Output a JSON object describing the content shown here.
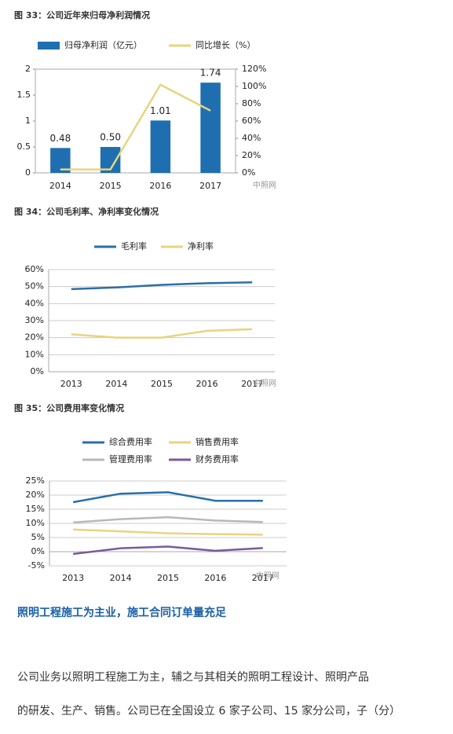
{
  "chart_data": [
    {
      "type": "bar",
      "title": "图 33：公司近年来归母净利润情况",
      "categories": [
        "2014",
        "2015",
        "2016",
        "2017"
      ],
      "series": [
        {
          "name": "归母净利润（亿元）",
          "type": "bar",
          "color": "#1f6fb0",
          "values": [
            0.48,
            0.5,
            1.01,
            1.74
          ],
          "value_labels": [
            "0.48",
            "0.50",
            "1.01",
            "1.74"
          ]
        },
        {
          "name": "同比增长（%）",
          "type": "line",
          "axis": "y2",
          "color": "#e8d47e",
          "values": [
            4,
            4,
            102,
            72
          ]
        }
      ],
      "ylim": [
        0,
        2
      ],
      "yticks": [
        0,
        0.5,
        1,
        1.5,
        2
      ],
      "y2lim": [
        0,
        120
      ],
      "y2ticks": [
        {
          "value": 0,
          "label": "0%"
        },
        {
          "value": 20,
          "label": "20%"
        },
        {
          "value": 40,
          "label": "40%"
        },
        {
          "value": 60,
          "label": "60%"
        },
        {
          "value": 80,
          "label": "80%"
        },
        {
          "value": 100,
          "label": "100%"
        },
        {
          "value": 120,
          "label": "120%"
        }
      ],
      "grid": false,
      "watermark": "中照网"
    },
    {
      "type": "line",
      "title": "图 34：公司毛利率、净利率变化情况",
      "categories": [
        "2013",
        "2014",
        "2015",
        "2016",
        "2017"
      ],
      "series": [
        {
          "name": "毛利率",
          "color": "#2a6fa8",
          "values": [
            48.5,
            49.5,
            51,
            52,
            52.5
          ]
        },
        {
          "name": "净利率",
          "color": "#e8d47e",
          "values": [
            22,
            20,
            20,
            24,
            25
          ]
        }
      ],
      "ylim": [
        0,
        60
      ],
      "yticks": [
        {
          "value": 0,
          "label": "0%"
        },
        {
          "value": 10,
          "label": "10%"
        },
        {
          "value": 20,
          "label": "20%"
        },
        {
          "value": 30,
          "label": "30%"
        },
        {
          "value": 40,
          "label": "40%"
        },
        {
          "value": 50,
          "label": "50%"
        },
        {
          "value": 60,
          "label": "60%"
        }
      ],
      "grid": true,
      "watermark": "中照网"
    },
    {
      "type": "line",
      "title": "图 35：公司费用率变化情况",
      "categories": [
        "2013",
        "2014",
        "2015",
        "2016",
        "2017"
      ],
      "series": [
        {
          "name": "综合费用率",
          "color": "#2a6fa8",
          "values": [
            17.5,
            20.5,
            21,
            18,
            18
          ]
        },
        {
          "name": "销售费用率",
          "color": "#e8d47e",
          "values": [
            7.8,
            7.2,
            6.5,
            6.2,
            6.0
          ]
        },
        {
          "name": "管理费用率",
          "color": "#b8b8b8",
          "values": [
            10.3,
            11.5,
            12.2,
            11.0,
            10.5
          ]
        },
        {
          "name": "财务费用率",
          "color": "#7a5a9e",
          "values": [
            -0.8,
            1.2,
            1.8,
            0.3,
            1.3
          ]
        }
      ],
      "ylim": [
        -5,
        25
      ],
      "yticks": [
        {
          "value": -5,
          "label": "-5%"
        },
        {
          "value": 0,
          "label": "0%"
        },
        {
          "value": 5,
          "label": "5%"
        },
        {
          "value": 10,
          "label": "10%"
        },
        {
          "value": 15,
          "label": "15%"
        },
        {
          "value": 20,
          "label": "20%"
        },
        {
          "value": 25,
          "label": "25%"
        }
      ],
      "grid": true,
      "watermark": "中照网"
    }
  ],
  "section": {
    "heading": "照明工程施工为主业，施工合同订单量充足",
    "paragraph": [
      "公司业务以照明工程施工为主，辅之与其相关的照明工程设计、照明产品",
      "的研发、生产、销售。公司已在全国设立 6 家子公司、15 家分公司，子（分）"
    ]
  }
}
